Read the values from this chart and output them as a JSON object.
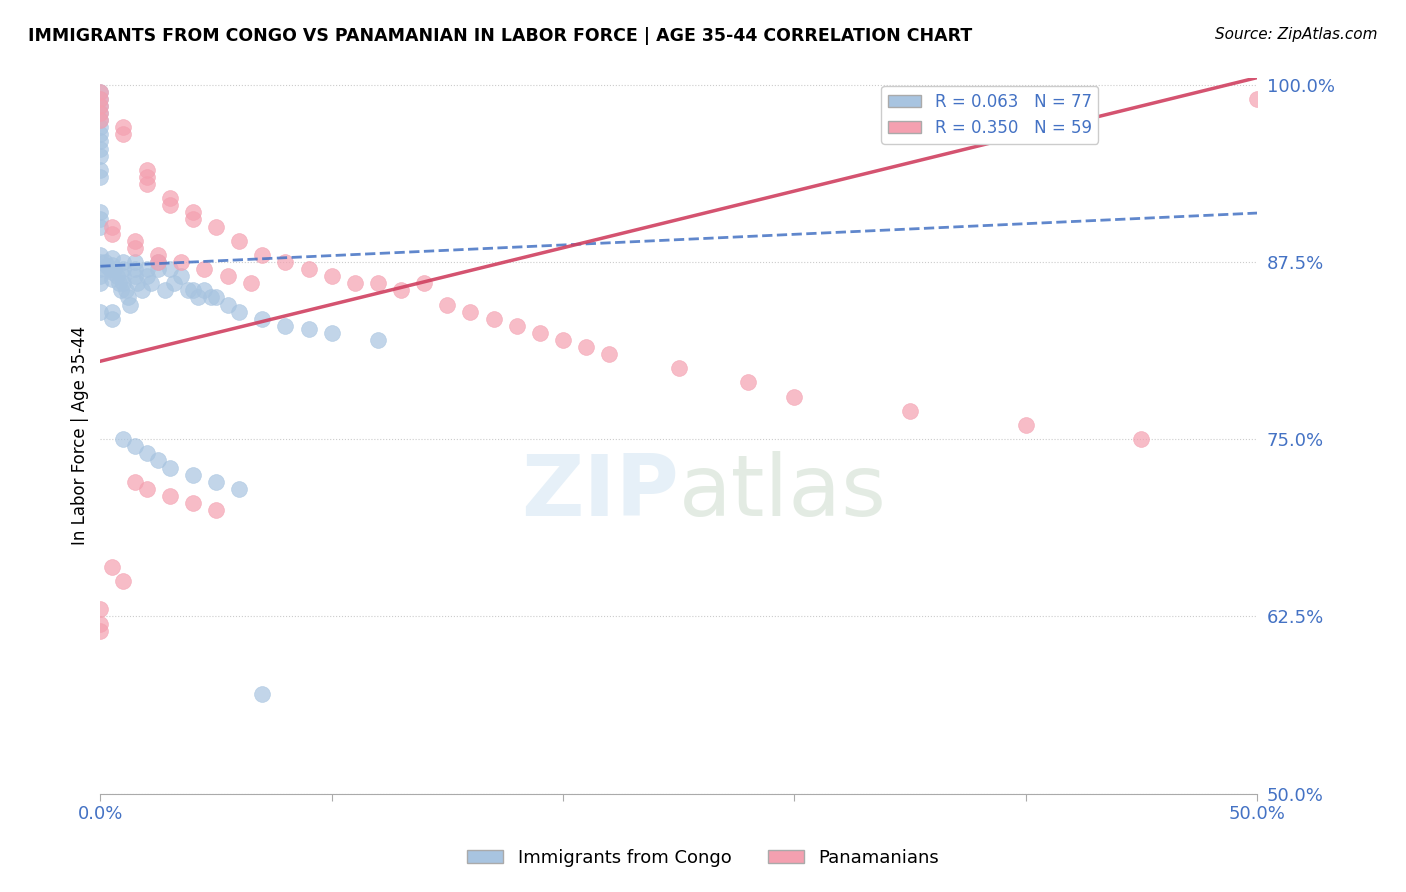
{
  "title": "IMMIGRANTS FROM CONGO VS PANAMANIAN IN LABOR FORCE | AGE 35-44 CORRELATION CHART",
  "source": "Source: ZipAtlas.com",
  "ylabel": "In Labor Force | Age 35-44",
  "xlim": [
    0.0,
    0.5
  ],
  "ylim": [
    0.5,
    1.005
  ],
  "ytick_positions": [
    0.5,
    0.625,
    0.75,
    0.875,
    1.0
  ],
  "yticklabels": [
    "50.0%",
    "62.5%",
    "75.0%",
    "87.5%",
    "100.0%"
  ],
  "xtick_positions": [
    0.0,
    0.1,
    0.2,
    0.3,
    0.4,
    0.5
  ],
  "xticklabels": [
    "0.0%",
    "",
    "",
    "",
    "",
    "50.0%"
  ],
  "congo_R": 0.063,
  "congo_N": 77,
  "panama_R": 0.35,
  "panama_N": 59,
  "congo_color": "#a8c4e0",
  "panama_color": "#f4a0b0",
  "congo_line_color": "#4472c4",
  "panama_line_color": "#d04060",
  "congo_x": [
    0.0,
    0.0,
    0.0,
    0.0,
    0.0,
    0.0,
    0.0,
    0.0,
    0.0,
    0.0,
    0.0,
    0.0,
    0.0,
    0.0,
    0.0,
    0.002,
    0.003,
    0.004,
    0.005,
    0.005,
    0.005,
    0.005,
    0.006,
    0.007,
    0.008,
    0.009,
    0.01,
    0.01,
    0.01,
    0.01,
    0.011,
    0.012,
    0.013,
    0.015,
    0.015,
    0.015,
    0.016,
    0.018,
    0.02,
    0.02,
    0.022,
    0.025,
    0.025,
    0.028,
    0.03,
    0.032,
    0.035,
    0.038,
    0.04,
    0.042,
    0.045,
    0.048,
    0.05,
    0.055,
    0.06,
    0.07,
    0.08,
    0.09,
    0.1,
    0.12,
    0.0,
    0.0,
    0.0,
    0.0,
    0.0,
    0.0,
    0.005,
    0.005,
    0.01,
    0.015,
    0.02,
    0.025,
    0.03,
    0.04,
    0.05,
    0.06,
    0.07
  ],
  "congo_y": [
    0.995,
    0.99,
    0.985,
    0.98,
    0.975,
    0.97,
    0.965,
    0.96,
    0.955,
    0.95,
    0.88,
    0.875,
    0.87,
    0.865,
    0.86,
    0.875,
    0.872,
    0.87,
    0.878,
    0.873,
    0.868,
    0.863,
    0.87,
    0.865,
    0.86,
    0.855,
    0.875,
    0.87,
    0.865,
    0.86,
    0.855,
    0.85,
    0.845,
    0.875,
    0.87,
    0.865,
    0.86,
    0.855,
    0.87,
    0.865,
    0.86,
    0.875,
    0.87,
    0.855,
    0.87,
    0.86,
    0.865,
    0.855,
    0.855,
    0.85,
    0.855,
    0.85,
    0.85,
    0.845,
    0.84,
    0.835,
    0.83,
    0.828,
    0.825,
    0.82,
    0.94,
    0.935,
    0.91,
    0.905,
    0.9,
    0.84,
    0.84,
    0.835,
    0.75,
    0.745,
    0.74,
    0.735,
    0.73,
    0.725,
    0.72,
    0.715,
    0.57
  ],
  "panama_x": [
    0.0,
    0.0,
    0.0,
    0.0,
    0.0,
    0.005,
    0.005,
    0.01,
    0.01,
    0.015,
    0.015,
    0.02,
    0.02,
    0.02,
    0.025,
    0.025,
    0.03,
    0.03,
    0.035,
    0.04,
    0.04,
    0.045,
    0.05,
    0.055,
    0.06,
    0.065,
    0.07,
    0.08,
    0.09,
    0.1,
    0.11,
    0.12,
    0.13,
    0.14,
    0.15,
    0.16,
    0.17,
    0.18,
    0.19,
    0.2,
    0.21,
    0.22,
    0.25,
    0.28,
    0.3,
    0.35,
    0.4,
    0.45,
    0.5,
    0.0,
    0.0,
    0.0,
    0.005,
    0.01,
    0.015,
    0.02,
    0.03,
    0.04,
    0.05
  ],
  "panama_y": [
    0.995,
    0.99,
    0.985,
    0.98,
    0.975,
    0.9,
    0.895,
    0.97,
    0.965,
    0.89,
    0.885,
    0.94,
    0.935,
    0.93,
    0.88,
    0.875,
    0.92,
    0.915,
    0.875,
    0.91,
    0.905,
    0.87,
    0.9,
    0.865,
    0.89,
    0.86,
    0.88,
    0.875,
    0.87,
    0.865,
    0.86,
    0.86,
    0.855,
    0.86,
    0.845,
    0.84,
    0.835,
    0.83,
    0.825,
    0.82,
    0.815,
    0.81,
    0.8,
    0.79,
    0.78,
    0.77,
    0.76,
    0.75,
    0.99,
    0.63,
    0.62,
    0.615,
    0.66,
    0.65,
    0.72,
    0.715,
    0.71,
    0.705,
    0.7
  ]
}
